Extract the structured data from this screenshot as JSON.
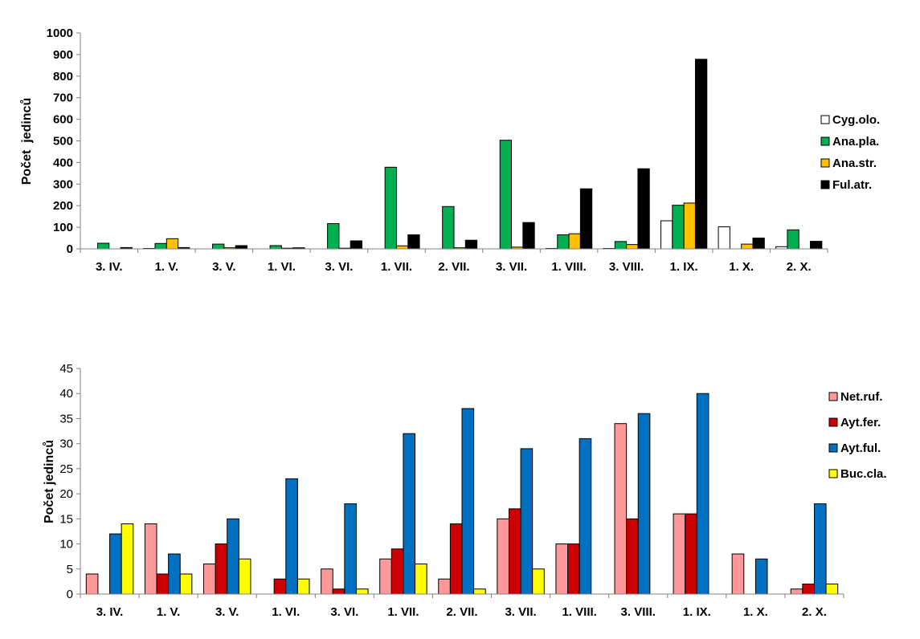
{
  "chart_data": [
    {
      "type": "bar",
      "title": "",
      "xlabel": "",
      "ylabel": "Počet  jedinců",
      "ylim": [
        0,
        1000
      ],
      "ytick_step": 100,
      "grid": false,
      "legend_position": "right",
      "categories": [
        "3. IV.",
        "1. V.",
        "3. V.",
        "1. VI.",
        "3. VI.",
        "1. VII.",
        "2. VII.",
        "3. VII.",
        "1. VIII.",
        "3. VIII.",
        "1. IX.",
        "1. X.",
        "2. X."
      ],
      "series": [
        {
          "name": "Cyg.olo.",
          "color": "#ffffff",
          "values": [
            0,
            2,
            0,
            0,
            0,
            0,
            0,
            0,
            2,
            2,
            130,
            102,
            10
          ]
        },
        {
          "name": "Ana.pla.",
          "color": "#00b050",
          "values": [
            26,
            25,
            22,
            15,
            117,
            378,
            196,
            503,
            65,
            34,
            202,
            0,
            88
          ]
        },
        {
          "name": "Ana.str.",
          "color": "#ffc000",
          "values": [
            0,
            47,
            5,
            3,
            3,
            14,
            5,
            8,
            70,
            20,
            212,
            22,
            0
          ]
        },
        {
          "name": "Ful.atr.",
          "color": "#000000",
          "values": [
            6,
            6,
            15,
            5,
            37,
            65,
            40,
            122,
            278,
            371,
            878,
            50,
            35
          ]
        }
      ]
    },
    {
      "type": "bar",
      "title": "",
      "xlabel": "",
      "ylabel": "Počet jedinců",
      "ylim": [
        0,
        45
      ],
      "ytick_step": 5,
      "grid": false,
      "legend_position": "right",
      "categories": [
        "3. IV.",
        "1. V.",
        "3. V.",
        "1. VI.",
        "3. VI.",
        "1. VII.",
        "2. VII.",
        "3. VII.",
        "1. VIII.",
        "3. VIII.",
        "1. IX.",
        "1. X.",
        "2. X."
      ],
      "series": [
        {
          "name": "Net.ruf.",
          "color": "#ff9999",
          "values": [
            4,
            14,
            6,
            0,
            5,
            7,
            3,
            15,
            10,
            34,
            16,
            8,
            1
          ]
        },
        {
          "name": "Ayt.fer.",
          "color": "#cc0000",
          "values": [
            0,
            4,
            10,
            3,
            1,
            9,
            14,
            17,
            10,
            15,
            16,
            0,
            2
          ]
        },
        {
          "name": "Ayt.ful.",
          "color": "#0070c0",
          "values": [
            12,
            8,
            15,
            23,
            18,
            32,
            37,
            29,
            31,
            36,
            40,
            7,
            18
          ]
        },
        {
          "name": "Buc.cla.",
          "color": "#ffff00",
          "values": [
            14,
            4,
            7,
            3,
            1,
            6,
            1,
            5,
            0,
            0,
            0,
            0,
            2
          ]
        }
      ]
    }
  ]
}
